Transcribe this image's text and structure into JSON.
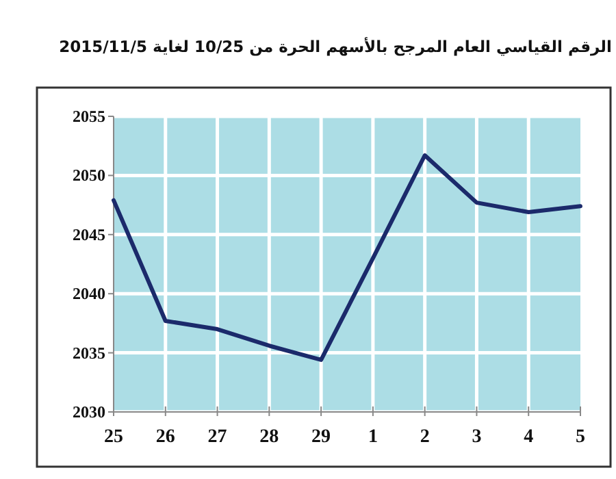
{
  "chart_data": {
    "type": "line",
    "title": "الرقم القياسي العام المرجح بالأسهم الحرة من 10/25 لغاية 2015/11/5",
    "categories": [
      "25",
      "26",
      "27",
      "28",
      "29",
      "1",
      "2",
      "3",
      "4",
      "5"
    ],
    "series": [
      {
        "color": "#1b2a6b",
        "values": [
          2047.9,
          2037.7,
          2037.0,
          2035.6,
          2034.4,
          2043.0,
          2051.7,
          2047.7,
          2046.9,
          2047.4
        ]
      }
    ],
    "ylim": [
      2030,
      2055
    ],
    "yticks": [
      2030,
      2035,
      2040,
      2045,
      2050,
      2055
    ],
    "grid": true,
    "marker": "none",
    "line_style": "solid"
  }
}
